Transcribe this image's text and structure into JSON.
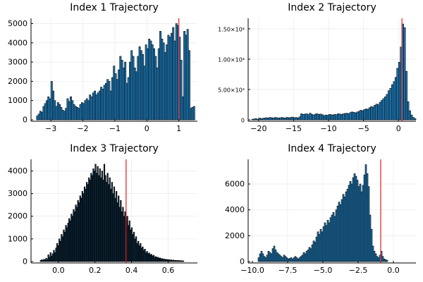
{
  "chart_data": [
    {
      "type": "bar",
      "title": "Index 1 Trajectory",
      "xlim": [
        -3.62,
        1.58
      ],
      "ylim": [
        0,
        5200
      ],
      "xticks": [
        -3,
        -2,
        -1,
        0,
        1
      ],
      "xtick_labels": [
        "−3",
        "−2",
        "−1",
        "0",
        "1"
      ],
      "yticks": [
        0,
        1000,
        2000,
        3000,
        4000,
        5000
      ],
      "ytick_labels": [
        "0",
        "1000",
        "2000",
        "3000",
        "4000",
        "5000"
      ],
      "vline": 1.0,
      "bin_start": -3.45,
      "bin_width": 0.05,
      "values": [
        200,
        300,
        450,
        400,
        700,
        850,
        1000,
        1200,
        1100,
        2000,
        1500,
        1000,
        700,
        900,
        800,
        650,
        500,
        450,
        600,
        1100,
        950,
        1200,
        1000,
        800,
        700,
        650,
        600,
        800,
        900,
        850,
        1000,
        1100,
        1000,
        1300,
        1200,
        1400,
        1500,
        1300,
        1400,
        1500,
        1700,
        1600,
        1800,
        1900,
        2100,
        2000,
        1500,
        2200,
        2800,
        2400,
        2100,
        2600,
        3300,
        3100,
        2700,
        3000,
        1900,
        2200,
        3000,
        3600,
        3300,
        2700,
        2500,
        3300,
        3800,
        3600,
        3400,
        2800,
        3900,
        3700,
        4200,
        4100,
        3900,
        3700,
        3300,
        2700,
        3700,
        4600,
        4200,
        4000,
        3500,
        3900,
        4400,
        4300,
        4500,
        4800,
        4100,
        5000,
        4900,
        4300,
        3100,
        1200,
        4600,
        4400,
        4700,
        3600,
        600,
        650,
        700
      ],
      "dark": false
    },
    {
      "type": "bar",
      "title": "Index 2 Trajectory",
      "xlim": [
        -21.5,
        2.5
      ],
      "ylim": [
        0,
        16500
      ],
      "xticks": [
        -20,
        -15,
        -10,
        -5,
        0
      ],
      "xtick_labels": [
        "−20",
        "−15",
        "−10",
        "−5",
        "0"
      ],
      "yticks": [
        0,
        5000,
        10000,
        15000
      ],
      "ytick_labels": [
        "0",
        "5.00×10³",
        "1.00×10⁴",
        "1.50×10⁴"
      ],
      "vline": 0.5,
      "bin_start": -21.0,
      "bin_width": 0.25,
      "values": [
        100,
        150,
        200,
        100,
        300,
        200,
        250,
        300,
        350,
        300,
        400,
        350,
        300,
        400,
        350,
        300,
        350,
        400,
        300,
        350,
        400,
        350,
        400,
        450,
        350,
        400,
        300,
        500,
        1000,
        900,
        950,
        1000,
        850,
        1100,
        900,
        800,
        950,
        1000,
        900,
        950,
        850,
        700,
        800,
        750,
        900,
        850,
        800,
        900,
        850,
        1000,
        950,
        900,
        1000,
        1050,
        1100,
        1000,
        1200,
        1300,
        1250,
        1150,
        1300,
        1400,
        1600,
        1500,
        1700,
        1800,
        1750,
        2000,
        2200,
        2100,
        2400,
        2600,
        2500,
        2900,
        3200,
        3500,
        3800,
        4200,
        4800,
        5200,
        5800,
        6300,
        7000,
        8500,
        9500,
        12000,
        15800,
        15200,
        8000,
        3000,
        1500,
        800,
        400,
        200
      ],
      "dark": false
    },
    {
      "type": "bar",
      "title": "Index 3 Trajectory",
      "xlim": [
        -0.15,
        0.76
      ],
      "ylim": [
        0,
        4450
      ],
      "xticks": [
        0.0,
        0.2,
        0.4,
        0.6
      ],
      "xtick_labels": [
        "0.0",
        "0.2",
        "0.4",
        "0.6"
      ],
      "yticks": [
        0,
        1000,
        2000,
        3000,
        4000
      ],
      "ytick_labels": [
        "0",
        "1000",
        "2000",
        "3000",
        "4000"
      ],
      "vline": 0.37,
      "bin_start": -0.1,
      "bin_width": 0.006,
      "values": [
        50,
        80,
        60,
        100,
        80,
        150,
        100,
        300,
        200,
        400,
        250,
        350,
        500,
        400,
        600,
        800,
        700,
        1000,
        900,
        1200,
        1100,
        1400,
        1300,
        1600,
        1500,
        1700,
        1900,
        1800,
        2100,
        2000,
        2300,
        2200,
        2500,
        2400,
        2700,
        2600,
        2900,
        2800,
        3100,
        3000,
        3300,
        3200,
        3500,
        3400,
        3700,
        3600,
        3900,
        3800,
        4100,
        4000,
        4300,
        3900,
        4200,
        3800,
        4100,
        3700,
        4000,
        3600,
        4300,
        3800,
        3500,
        3900,
        3400,
        3700,
        3200,
        3500,
        3000,
        3300,
        2800,
        3100,
        2600,
        2900,
        2400,
        2700,
        2200,
        2400,
        2000,
        2200,
        1800,
        2000,
        1600,
        1800,
        1400,
        1500,
        1200,
        1300,
        1000,
        1100,
        800,
        900,
        700,
        800,
        600,
        650,
        500,
        550,
        400,
        450,
        350,
        380,
        300,
        320,
        250,
        280,
        200,
        220,
        180,
        190,
        150,
        160,
        120,
        130,
        100,
        110,
        90,
        95,
        80,
        85,
        70,
        75,
        60,
        65,
        50,
        55,
        45,
        50,
        40,
        45,
        35,
        40,
        30
      ],
      "dark": true
    },
    {
      "type": "bar",
      "title": "Index 4 Trajectory",
      "xlim": [
        -10.3,
        1.6
      ],
      "ylim": [
        0,
        7800
      ],
      "xticks": [
        -10.0,
        -7.5,
        -5.0,
        -2.5,
        0.0
      ],
      "xtick_labels": [
        "−10.0",
        "−7.5",
        "−5.0",
        "−2.5",
        "0.0"
      ],
      "yticks": [
        0,
        2000,
        4000,
        6000
      ],
      "ytick_labels": [
        "0",
        "2000",
        "4000",
        "6000"
      ],
      "vline": -0.9,
      "bin_start": -9.6,
      "bin_width": 0.1,
      "values": [
        300,
        600,
        800,
        600,
        400,
        300,
        500,
        800,
        700,
        600,
        1000,
        1200,
        900,
        700,
        600,
        500,
        400,
        300,
        500,
        400,
        300,
        200,
        250,
        300,
        200,
        300,
        400,
        300,
        200,
        300,
        400,
        500,
        700,
        600,
        800,
        900,
        1100,
        1000,
        1300,
        1600,
        1500,
        1900,
        2300,
        2100,
        2500,
        2300,
        2700,
        3000,
        2800,
        3200,
        3000,
        3400,
        3600,
        3800,
        3500,
        4000,
        4300,
        4600,
        4400,
        4800,
        5200,
        5000,
        5400,
        5600,
        5900,
        6200,
        6000,
        6500,
        6800,
        6600,
        6300,
        5800,
        6000,
        5400,
        5900,
        6700,
        7500,
        6800,
        5800,
        3600,
        2500,
        1200,
        800,
        600,
        400,
        300,
        500,
        800,
        400,
        200,
        150,
        100
      ],
      "dark": false
    }
  ]
}
